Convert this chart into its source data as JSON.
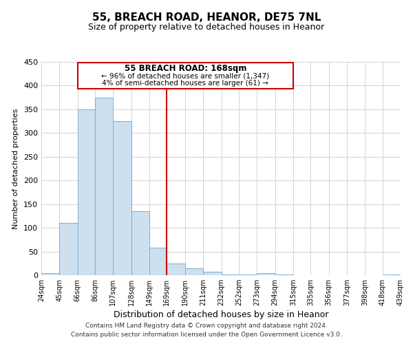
{
  "title": "55, BREACH ROAD, HEANOR, DE75 7NL",
  "subtitle": "Size of property relative to detached houses in Heanor",
  "xlabel": "Distribution of detached houses by size in Heanor",
  "ylabel": "Number of detached properties",
  "bar_color": "#cde0f0",
  "bar_edge_color": "#7ab0d0",
  "vline_x": 169,
  "vline_color": "#cc0000",
  "annotation_title": "55 BREACH ROAD: 168sqm",
  "annotation_line1": "← 96% of detached houses are smaller (1,347)",
  "annotation_line2": "4% of semi-detached houses are larger (61) →",
  "annotation_box_color": "#ffffff",
  "annotation_box_edge_color": "#cc0000",
  "bin_edges": [
    24,
    45,
    66,
    86,
    107,
    128,
    149,
    169,
    190,
    211,
    232,
    252,
    273,
    294,
    315,
    335,
    356,
    377,
    398,
    418,
    439
  ],
  "bin_heights": [
    5,
    110,
    350,
    375,
    325,
    135,
    58,
    25,
    14,
    7,
    2,
    1,
    5,
    1,
    0,
    0,
    0,
    0,
    0,
    2
  ],
  "ylim": [
    0,
    450
  ],
  "yticks": [
    0,
    50,
    100,
    150,
    200,
    250,
    300,
    350,
    400,
    450
  ],
  "xtick_labels": [
    "24sqm",
    "45sqm",
    "66sqm",
    "86sqm",
    "107sqm",
    "128sqm",
    "149sqm",
    "169sqm",
    "190sqm",
    "211sqm",
    "232sqm",
    "252sqm",
    "273sqm",
    "294sqm",
    "315sqm",
    "335sqm",
    "356sqm",
    "377sqm",
    "398sqm",
    "418sqm",
    "439sqm"
  ],
  "footer_line1": "Contains HM Land Registry data © Crown copyright and database right 2024.",
  "footer_line2": "Contains public sector information licensed under the Open Government Licence v3.0.",
  "background_color": "#ffffff",
  "grid_color": "#cccccc",
  "title_fontsize": 11,
  "subtitle_fontsize": 9,
  "ylabel_fontsize": 8,
  "xlabel_fontsize": 9
}
